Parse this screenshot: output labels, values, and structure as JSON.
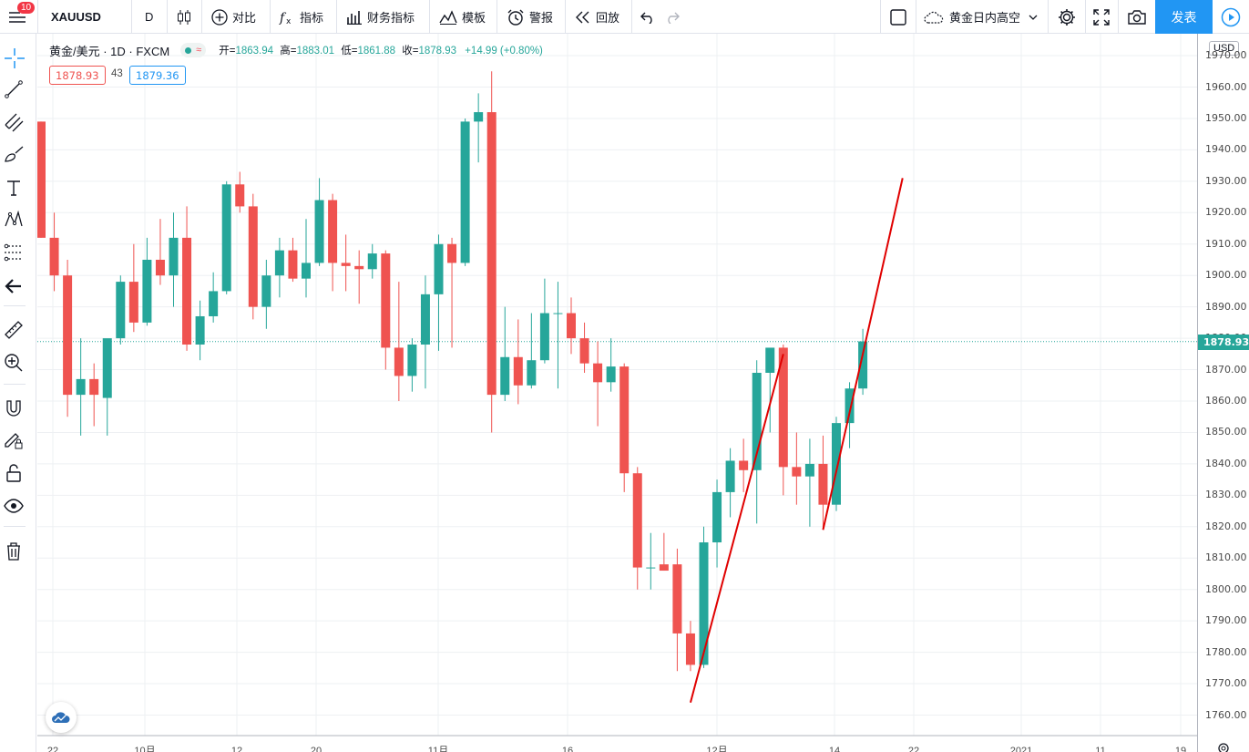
{
  "toolbar": {
    "menu_badge": "10",
    "symbol": "XAUUSD",
    "interval": "D",
    "compare": "对比",
    "indicators": "指标",
    "financials": "财务指标",
    "templates": "模板",
    "alert": "警报",
    "replay": "回放",
    "layout_name": "黄金日内高空",
    "publish": "发表"
  },
  "legend": {
    "title": "黄金/美元 · 1D · FXCM",
    "open_label": "开=",
    "open": "1863.94",
    "high_label": "高=",
    "high": "1883.01",
    "low_label": "低=",
    "low": "1861.88",
    "close_label": "收=",
    "close": "1878.93",
    "change": "+14.99 (+0.80%)",
    "bid": "1878.93",
    "spread": "43",
    "ask": "1879.36"
  },
  "price_axis": {
    "currency": "USD",
    "ticks": [
      "1970.00",
      "1960.00",
      "1950.00",
      "1940.00",
      "1930.00",
      "1920.00",
      "1910.00",
      "1900.00",
      "1890.00",
      "1880.00",
      "1870.00",
      "1860.00",
      "1850.00",
      "1840.00",
      "1830.00",
      "1820.00",
      "1810.00",
      "1800.00",
      "1790.00",
      "1780.00",
      "1770.00",
      "1760.00"
    ],
    "last_price": "1878.93"
  },
  "time_axis": {
    "labels": [
      "22",
      "10月",
      "12",
      "20",
      "11月",
      "16",
      "12月",
      "14",
      "22",
      "2021",
      "11",
      "19"
    ]
  },
  "colors": {
    "up": "#26a69a",
    "down": "#ef5350",
    "drawing_line": "#e00000",
    "accent": "#2196f3"
  },
  "chart_data": {
    "type": "candlestick",
    "symbol": "XAUUSD",
    "ylim": [
      1755,
      1972
    ],
    "candles": [
      [
        1949,
        1949,
        1912,
        1912
      ],
      [
        1912,
        1920,
        1895,
        1900
      ],
      [
        1900,
        1905,
        1855,
        1862
      ],
      [
        1862,
        1880,
        1849,
        1867
      ],
      [
        1867,
        1872,
        1852,
        1862
      ],
      [
        1861,
        1878,
        1849,
        1880
      ],
      [
        1880,
        1900,
        1878,
        1898
      ],
      [
        1898,
        1910,
        1882,
        1885
      ],
      [
        1885,
        1912,
        1884,
        1905
      ],
      [
        1905,
        1918,
        1897,
        1900
      ],
      [
        1900,
        1920,
        1890,
        1912
      ],
      [
        1912,
        1922,
        1876,
        1878
      ],
      [
        1878,
        1892,
        1873,
        1887
      ],
      [
        1887,
        1901,
        1885,
        1895
      ],
      [
        1895,
        1930,
        1894,
        1929
      ],
      [
        1929,
        1933,
        1920,
        1922
      ],
      [
        1922,
        1926,
        1886,
        1890
      ],
      [
        1890,
        1905,
        1883,
        1900
      ],
      [
        1900,
        1912,
        1893,
        1908
      ],
      [
        1908,
        1912,
        1898,
        1899
      ],
      [
        1899,
        1918,
        1893,
        1904
      ],
      [
        1904,
        1931,
        1903,
        1924
      ],
      [
        1924,
        1926,
        1895,
        1904
      ],
      [
        1904,
        1913,
        1895,
        1903
      ],
      [
        1903,
        1908,
        1891,
        1902
      ],
      [
        1902,
        1910,
        1899,
        1907
      ],
      [
        1907,
        1908,
        1870,
        1877
      ],
      [
        1877,
        1898,
        1860,
        1868
      ],
      [
        1868,
        1880,
        1863,
        1878
      ],
      [
        1878,
        1900,
        1864,
        1894
      ],
      [
        1894,
        1913,
        1876,
        1910
      ],
      [
        1910,
        1912,
        1877,
        1904
      ],
      [
        1904,
        1950,
        1903,
        1949
      ],
      [
        1949,
        1958,
        1936,
        1952
      ],
      [
        1952,
        1965,
        1850,
        1862
      ],
      [
        1862,
        1890,
        1860,
        1874
      ],
      [
        1874,
        1886,
        1859,
        1865
      ],
      [
        1865,
        1888,
        1864,
        1873
      ],
      [
        1873,
        1899,
        1872,
        1888
      ],
      [
        1888,
        1898,
        1864,
        1888
      ],
      [
        1888,
        1893,
        1875,
        1880
      ],
      [
        1880,
        1885,
        1869,
        1872
      ],
      [
        1872,
        1879,
        1852,
        1866
      ],
      [
        1866,
        1880,
        1863,
        1871
      ],
      [
        1871,
        1872,
        1831,
        1837
      ],
      [
        1837,
        1839,
        1800,
        1807
      ],
      [
        1807,
        1818,
        1800,
        1807
      ],
      [
        1808,
        1818,
        1806,
        1806
      ],
      [
        1808,
        1813,
        1774,
        1786
      ],
      [
        1786,
        1790,
        1774,
        1776
      ],
      [
        1776,
        1820,
        1775,
        1815
      ],
      [
        1815,
        1835,
        1807,
        1831
      ],
      [
        1831,
        1845,
        1823,
        1841
      ],
      [
        1841,
        1848,
        1831,
        1838
      ],
      [
        1838,
        1873,
        1821,
        1869
      ],
      [
        1869,
        1876,
        1850,
        1877
      ],
      [
        1877,
        1878,
        1830,
        1839
      ],
      [
        1839,
        1850,
        1827,
        1836
      ],
      [
        1836,
        1848,
        1820,
        1840
      ],
      [
        1840,
        1849,
        1819,
        1827
      ],
      [
        1827,
        1855,
        1825,
        1853
      ],
      [
        1853,
        1866,
        1845,
        1864
      ],
      [
        1864,
        1883,
        1862,
        1879
      ]
    ],
    "trend_lines": [
      {
        "from": [
          49,
          1764
        ],
        "to": [
          56,
          1875
        ]
      },
      {
        "from": [
          59,
          1819
        ],
        "to": [
          65,
          1931
        ]
      }
    ]
  }
}
